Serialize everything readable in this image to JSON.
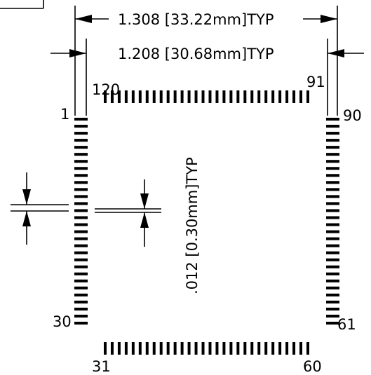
{
  "dimensions": {
    "outer_width": "1.308  [33.22mm]TYP",
    "inner_width": "1.208  [30.68mm]TYP",
    "pad_pitch": ".012  [0.30mm]TYP"
  },
  "pins": {
    "left_top": "1",
    "left_bottom": "30",
    "bottom_left": "31",
    "bottom_right": "60",
    "right_bottom": "61",
    "right_top": "90",
    "top_right": "91",
    "top_left": "120"
  },
  "pads": {
    "per_side": 30
  }
}
